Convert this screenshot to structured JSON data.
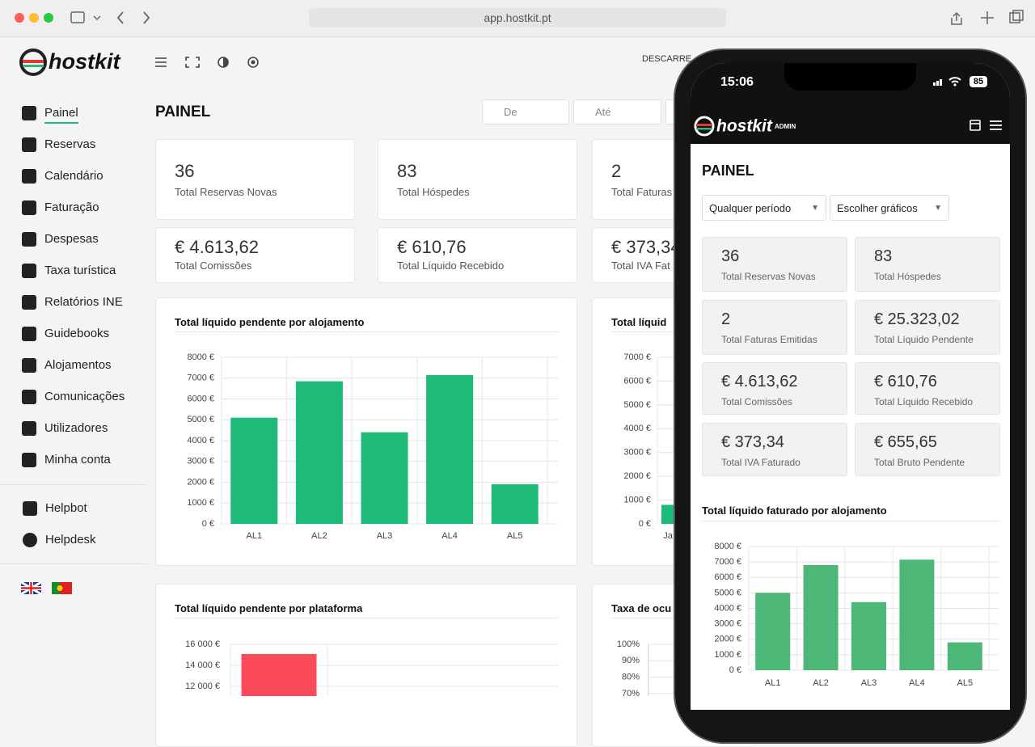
{
  "browser": {
    "url": "app.hostkit.pt"
  },
  "header": {
    "logo": "hostkit",
    "download": "DESCARRE"
  },
  "sidebar": {
    "menu": [
      "Painel",
      "Reservas",
      "Calendário",
      "Faturação",
      "Despesas",
      "Taxa turística",
      "Relatórios INE",
      "Guidebooks",
      "Alojamentos",
      "Comunicações",
      "Utilizadores",
      "Minha conta"
    ],
    "help": [
      "Helpbot",
      "Helpdesk"
    ]
  },
  "main": {
    "title": "PAINEL",
    "date_from": "De",
    "date_to": "Até",
    "stats": [
      {
        "value": "36",
        "label": "Total Reservas Novas"
      },
      {
        "value": "83",
        "label": "Total Hóspedes"
      },
      {
        "value": "2",
        "label": "Total Faturas"
      },
      {
        "value": "€ 4.613,62",
        "label": "Total Comissões"
      },
      {
        "value": "€ 610,76",
        "label": "Total Líquido Recebido"
      },
      {
        "value": "€ 373,34",
        "label": "Total IVA Fat"
      }
    ],
    "charts": [
      {
        "type": "bar",
        "title": "Total líquido pendente por alojamento",
        "color": "#1dba78",
        "categories": [
          "AL1",
          "AL2",
          "AL3",
          "AL4",
          "AL5"
        ],
        "values": [
          5100,
          6850,
          4400,
          7150,
          1900
        ],
        "ylim": [
          0,
          8000
        ],
        "yticks": [
          {
            "value": 0,
            "label": "0 €"
          },
          {
            "value": 1000,
            "label": "1000 €"
          },
          {
            "value": 2000,
            "label": "2000 €"
          },
          {
            "value": 3000,
            "label": "3000 €"
          },
          {
            "value": 4000,
            "label": "4000 €"
          },
          {
            "value": 5000,
            "label": "5000 €"
          },
          {
            "value": 6000,
            "label": "6000 €"
          },
          {
            "value": 7000,
            "label": "7000 €"
          },
          {
            "value": 8000,
            "label": "8000 €"
          }
        ]
      },
      {
        "type": "bar",
        "title": "Total líquid",
        "color": "#1dba78",
        "categories": [
          "Ja"
        ],
        "values": [
          800
        ],
        "ylim": [
          0,
          7000
        ],
        "yticks": [
          {
            "value": 0,
            "label": "0 €"
          },
          {
            "value": 1000,
            "label": "1000 €"
          },
          {
            "value": 2000,
            "label": "2000 €"
          },
          {
            "value": 3000,
            "label": "3000 €"
          },
          {
            "value": 4000,
            "label": "4000 €"
          },
          {
            "value": 5000,
            "label": "5000 €"
          },
          {
            "value": 6000,
            "label": "6000 €"
          },
          {
            "value": 7000,
            "label": "7000 €"
          }
        ]
      },
      {
        "type": "bar",
        "title": "Total líquido pendente por plataforma",
        "color": "#fb4a5a",
        "categories": [
          null
        ],
        "values": [
          15080
        ],
        "ylim": [
          11000,
          16000
        ],
        "yticks": [
          {
            "value": 12000,
            "label": "12 000 €"
          },
          {
            "value": 14000,
            "label": "14 000 €"
          },
          {
            "value": 16000,
            "label": "16 000 €"
          }
        ]
      },
      {
        "type": "bar",
        "title": "Taxa de ocu",
        "ylim": [
          0,
          100
        ],
        "yticks": [
          {
            "value": 70,
            "label": "70%"
          },
          {
            "value": 80,
            "label": "80%"
          },
          {
            "value": 90,
            "label": "90%"
          },
          {
            "value": 100,
            "label": "100%"
          }
        ]
      }
    ]
  },
  "phone": {
    "time": "15:06",
    "battery": "85",
    "logo": "hostkit",
    "role": "ADMIN",
    "title": "PAINEL",
    "period": "Qualquer período",
    "charts_select": "Escolher gráficos",
    "stats": [
      {
        "value": "36",
        "label": "Total Reservas Novas"
      },
      {
        "value": "83",
        "label": "Total Hóspedes"
      },
      {
        "value": "2",
        "label": "Total Faturas Emitidas"
      },
      {
        "value": "€ 25.323,02",
        "label": "Total Líquido Pendente"
      },
      {
        "value": "€ 4.613,62",
        "label": "Total Comissões"
      },
      {
        "value": "€ 610,76",
        "label": "Total Líquido Recebido"
      },
      {
        "value": "€ 373,34",
        "label": "Total IVA Faturado"
      },
      {
        "value": "€ 655,65",
        "label": "Total Bruto Pendente"
      }
    ],
    "chart": {
      "type": "bar",
      "title": "Total líquido faturado por alojamento",
      "color": "#4cb777",
      "categories": [
        "AL1",
        "AL2",
        "AL3",
        "AL4",
        "AL5"
      ],
      "values": [
        5000,
        6800,
        4400,
        7150,
        1800
      ],
      "ylim": [
        0,
        8000
      ],
      "yticks": [
        {
          "value": 0,
          "label": "0 €"
        },
        {
          "value": 1000,
          "label": "1000 €"
        },
        {
          "value": 2000,
          "label": "2000 €"
        },
        {
          "value": 3000,
          "label": "3000 €"
        },
        {
          "value": 4000,
          "label": "4000 €"
        },
        {
          "value": 5000,
          "label": "5000 €"
        },
        {
          "value": 6000,
          "label": "6000 €"
        },
        {
          "value": 7000,
          "label": "7000 €"
        },
        {
          "value": 8000,
          "label": "8000 €"
        }
      ]
    }
  }
}
